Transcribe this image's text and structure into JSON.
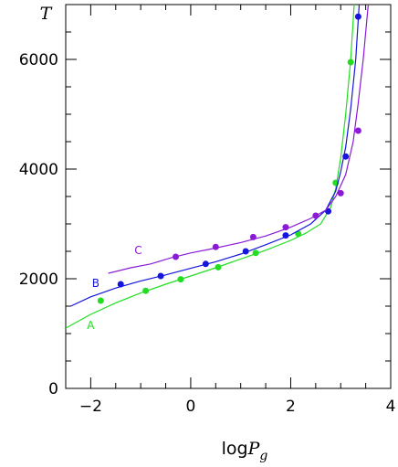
{
  "chart_data": {
    "type": "line",
    "xlabel_base": "log",
    "xlabel_var": "P",
    "xlabel_sub": "g",
    "ylabel": "T",
    "xlim": [
      -2.5,
      4
    ],
    "ylim": [
      0,
      7000
    ],
    "x_ticks": [
      -2,
      0,
      2,
      4
    ],
    "x_tick_labels": [
      "−2",
      "0",
      "2",
      "4"
    ],
    "y_ticks": [
      0,
      2000,
      4000,
      6000
    ],
    "y_tick_labels": [
      "0",
      "2000",
      "4000",
      "6000"
    ],
    "grid": false,
    "series": [
      {
        "name": "A",
        "color": "#22dd22",
        "curve": [
          [
            -2.5,
            1100
          ],
          [
            -2.0,
            1350
          ],
          [
            -1.5,
            1560
          ],
          [
            -1.0,
            1740
          ],
          [
            -0.5,
            1900
          ],
          [
            0.0,
            2050
          ],
          [
            0.5,
            2200
          ],
          [
            1.0,
            2360
          ],
          [
            1.5,
            2520
          ],
          [
            2.0,
            2700
          ],
          [
            2.3,
            2830
          ],
          [
            2.6,
            3000
          ],
          [
            2.8,
            3300
          ],
          [
            2.9,
            3650
          ],
          [
            3.0,
            4200
          ],
          [
            3.1,
            5000
          ],
          [
            3.2,
            6000
          ],
          [
            3.27,
            7000
          ]
        ],
        "points": [
          [
            -1.8,
            1600
          ],
          [
            -0.9,
            1780
          ],
          [
            -0.2,
            1990
          ],
          [
            0.55,
            2210
          ],
          [
            1.3,
            2470
          ],
          [
            2.15,
            2820
          ],
          [
            2.9,
            3750
          ],
          [
            3.2,
            5950
          ]
        ]
      },
      {
        "name": "B",
        "color": "#1515dd",
        "curve": [
          [
            -2.4,
            1500
          ],
          [
            -2.0,
            1670
          ],
          [
            -1.5,
            1830
          ],
          [
            -1.0,
            1960
          ],
          [
            -0.5,
            2070
          ],
          [
            0.0,
            2190
          ],
          [
            0.5,
            2310
          ],
          [
            1.0,
            2450
          ],
          [
            1.5,
            2620
          ],
          [
            2.0,
            2800
          ],
          [
            2.4,
            3000
          ],
          [
            2.7,
            3250
          ],
          [
            2.9,
            3600
          ],
          [
            3.0,
            3950
          ],
          [
            3.1,
            4400
          ],
          [
            3.2,
            5100
          ],
          [
            3.3,
            6000
          ],
          [
            3.37,
            7000
          ]
        ],
        "points": [
          [
            -1.4,
            1900
          ],
          [
            -0.6,
            2050
          ],
          [
            0.3,
            2270
          ],
          [
            1.1,
            2500
          ],
          [
            1.9,
            2790
          ],
          [
            2.75,
            3230
          ],
          [
            3.1,
            4230
          ],
          [
            3.35,
            6780
          ]
        ]
      },
      {
        "name": "C",
        "color": "#8a1ad6",
        "curve": [
          [
            -1.65,
            2100
          ],
          [
            -1.2,
            2200
          ],
          [
            -0.8,
            2270
          ],
          [
            -0.4,
            2380
          ],
          [
            0.0,
            2470
          ],
          [
            0.5,
            2560
          ],
          [
            1.0,
            2660
          ],
          [
            1.5,
            2780
          ],
          [
            2.0,
            2940
          ],
          [
            2.4,
            3100
          ],
          [
            2.7,
            3250
          ],
          [
            2.9,
            3500
          ],
          [
            3.1,
            3900
          ],
          [
            3.25,
            4500
          ],
          [
            3.35,
            5200
          ],
          [
            3.45,
            6000
          ],
          [
            3.55,
            7000
          ]
        ],
        "points": [
          [
            -0.3,
            2400
          ],
          [
            0.5,
            2580
          ],
          [
            1.25,
            2760
          ],
          [
            1.9,
            2940
          ],
          [
            2.5,
            3150
          ],
          [
            3.0,
            3560
          ],
          [
            3.35,
            4700
          ]
        ]
      }
    ],
    "label_positions": [
      [
        -2.0,
        1080
      ],
      [
        -1.9,
        1850
      ],
      [
        -1.05,
        2450
      ]
    ]
  }
}
